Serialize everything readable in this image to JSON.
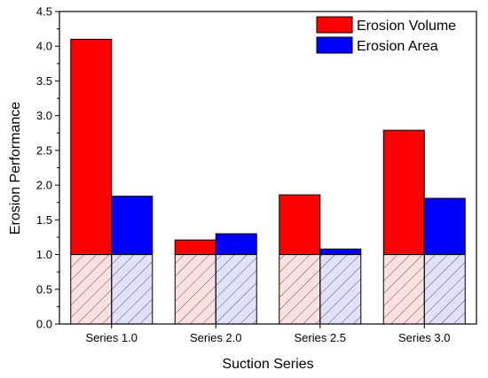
{
  "chart_data": {
    "type": "bar",
    "xlabel": "Suction Series",
    "ylabel": "Erosion Performance",
    "categories": [
      "Series 1.0",
      "Series 2.0",
      "Series 2.5",
      "Series 3.0"
    ],
    "series": [
      {
        "name": "Erosion Volume",
        "color": "#ff0000",
        "values": [
          4.1,
          1.21,
          1.86,
          2.79
        ]
      },
      {
        "name": "Erosion Area",
        "color": "#0000ff",
        "values": [
          1.84,
          1.3,
          1.08,
          1.81
        ]
      }
    ],
    "baseline": 1.0,
    "baseline_fill": "hatched",
    "ylim": [
      0.0,
      4.5
    ],
    "yticks": [
      "0.0",
      "0.5",
      "1.0",
      "1.5",
      "2.0",
      "2.5",
      "3.0",
      "3.5",
      "4.0",
      "4.5"
    ],
    "grid": false,
    "legend_position": "top-right"
  }
}
